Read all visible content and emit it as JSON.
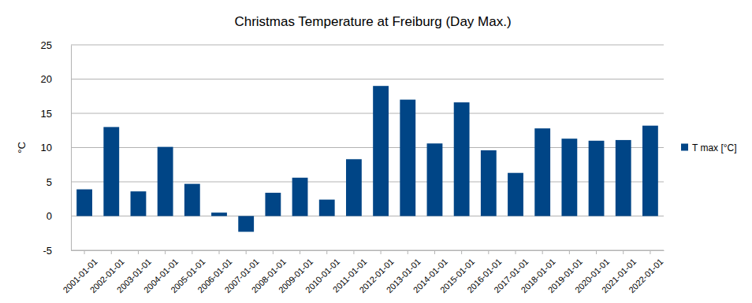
{
  "chart_data": {
    "type": "bar",
    "title": "Christmas Temperature at Freiburg (Day Max.)",
    "y_label": "°C",
    "categories": [
      "2001-01-01",
      "2002-01-01",
      "2003-01-01",
      "2004-01-01",
      "2005-01-01",
      "2006-01-01",
      "2007-01-01",
      "2008-01-01",
      "2009-01-01",
      "2010-01-01",
      "2011-01-01",
      "2012-01-01",
      "2013-01-01",
      "2014-01-01",
      "2015-01-01",
      "2016-01-01",
      "2017-01-01",
      "2018-01-01",
      "2019-01-01",
      "2020-01-01",
      "2021-01-01",
      "2022-01-01"
    ],
    "series": [
      {
        "name": "T max [°C]",
        "color": "#004586",
        "values": [
          3.9,
          13.0,
          3.6,
          10.1,
          4.7,
          0.5,
          -2.3,
          3.4,
          5.6,
          2.4,
          8.3,
          19.0,
          17.0,
          10.6,
          16.6,
          9.6,
          6.3,
          12.8,
          11.3,
          11.0,
          11.1,
          13.2
        ]
      }
    ],
    "ylim": [
      -5,
      25
    ],
    "yticks": [
      -5,
      0,
      5,
      10,
      15,
      20,
      25
    ],
    "grid": true,
    "legend": "right"
  }
}
